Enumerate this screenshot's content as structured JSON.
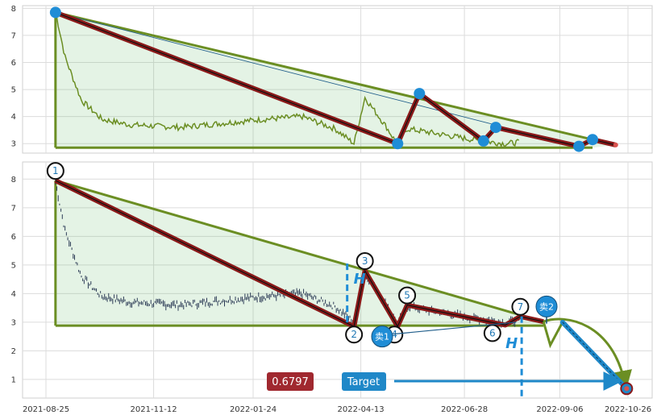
{
  "chart_data": [
    {
      "type": "line",
      "panel": "overview",
      "ylim": [
        2.65,
        8.1
      ],
      "yticks": [
        "3",
        "4",
        "5",
        "6",
        "7",
        "8"
      ],
      "grid": true,
      "pattern_points": [
        {
          "x": "2021-09-01",
          "y": 7.85
        },
        {
          "x": "2022-05-10",
          "y": 3.0
        },
        {
          "x": "2022-05-26",
          "y": 4.85
        },
        {
          "x": "2022-07-12",
          "y": 3.1
        },
        {
          "x": "2022-07-21",
          "y": 3.6
        },
        {
          "x": "2022-09-20",
          "y": 2.9
        },
        {
          "x": "2022-09-30",
          "y": 3.15
        },
        {
          "x": "2022-10-17",
          "y": 2.95
        }
      ]
    },
    {
      "type": "line",
      "panel": "detail",
      "ylim": [
        0.35,
        8.6
      ],
      "yticks": [
        "1",
        "2",
        "3",
        "4",
        "5",
        "6",
        "7",
        "8"
      ],
      "xticks": [
        "2021-08-25",
        "2021-11-12",
        "2022-01-24",
        "2022-04-13",
        "2022-06-28",
        "2022-09-06",
        "2022-10-26"
      ],
      "grid": true,
      "pattern_points": [
        {
          "label": "1",
          "x": "2021-09-01",
          "y": 7.95
        },
        {
          "label": "2",
          "x": "2022-04-08",
          "y": 2.85
        },
        {
          "label": "3",
          "x": "2022-04-16",
          "y": 4.8
        },
        {
          "label": "4",
          "x": "2022-05-10",
          "y": 2.85
        },
        {
          "label": "5",
          "x": "2022-05-17",
          "y": 3.6
        },
        {
          "label": "6",
          "x": "2022-07-28",
          "y": 2.9
        },
        {
          "label": "7",
          "x": "2022-08-08",
          "y": 3.2
        }
      ],
      "sell_markers": [
        "卖1",
        "卖2"
      ],
      "price_badge": "0.6797",
      "target_label": "Target",
      "target_value": 0.6797
    }
  ],
  "colors": {
    "pattern_line": "#8b1a1a",
    "pattern_fill": "#2a7f3a",
    "green_line": "#6b8e23",
    "marker_blue": "#1f8dd6",
    "badge_red": "#a0282f",
    "badge_blue": "#1f88c8",
    "price": "#2b3a55"
  }
}
